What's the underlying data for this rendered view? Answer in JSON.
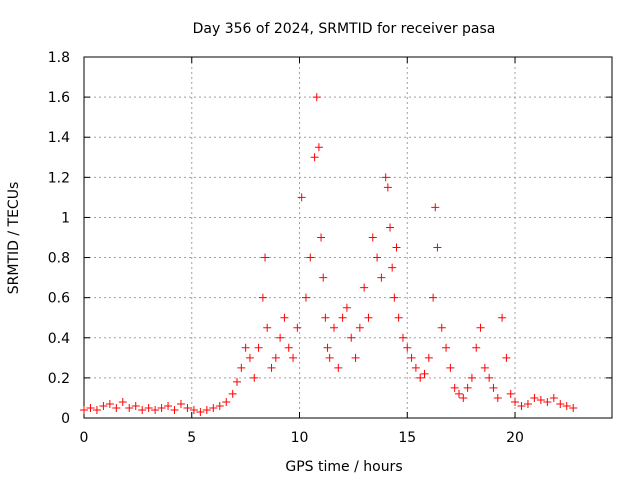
{
  "chart_data": {
    "type": "scatter",
    "title": "Day 356 of 2024, SRMTID for receiver pasa",
    "xlabel": "GPS time / hours",
    "ylabel": "SRMTID / TECUs",
    "xlim": [
      0,
      24.5
    ],
    "ylim": [
      0,
      1.8
    ],
    "xticks": [
      0,
      5,
      10,
      15,
      20
    ],
    "xtick_labels": [
      "0",
      "5",
      "10",
      "15",
      "20"
    ],
    "yticks": [
      0,
      0.2,
      0.4,
      0.6,
      0.8,
      1,
      1.2,
      1.4,
      1.6,
      1.8
    ],
    "ytick_labels": [
      "0",
      "0.2",
      "0.4",
      "0.6",
      "0.8",
      "1",
      "1.2",
      "1.4",
      "1.6",
      "1.8"
    ],
    "grid": true,
    "marker": "+",
    "marker_color": "#ff0000",
    "series": [
      {
        "name": "SRMTID",
        "x": [
          0.0,
          0.3,
          0.6,
          0.9,
          1.2,
          1.5,
          1.8,
          2.1,
          2.4,
          2.7,
          3.0,
          3.3,
          3.6,
          3.9,
          4.2,
          4.5,
          4.8,
          5.1,
          5.4,
          5.7,
          6.0,
          6.3,
          6.6,
          6.9,
          7.1,
          7.3,
          7.5,
          7.7,
          7.9,
          8.1,
          8.3,
          8.4,
          8.5,
          8.7,
          8.9,
          9.1,
          9.3,
          9.5,
          9.7,
          9.9,
          10.1,
          10.3,
          10.5,
          10.7,
          10.8,
          10.9,
          11.0,
          11.1,
          11.2,
          11.3,
          11.4,
          11.6,
          11.8,
          12.0,
          12.2,
          12.4,
          12.6,
          12.8,
          13.0,
          13.2,
          13.4,
          13.6,
          13.8,
          14.0,
          14.1,
          14.2,
          14.3,
          14.4,
          14.5,
          14.6,
          14.8,
          15.0,
          15.2,
          15.4,
          15.6,
          15.8,
          16.0,
          16.2,
          16.3,
          16.4,
          16.6,
          16.8,
          17.0,
          17.2,
          17.4,
          17.6,
          17.8,
          18.0,
          18.2,
          18.4,
          18.6,
          18.8,
          19.0,
          19.2,
          19.4,
          19.6,
          19.8,
          20.0,
          20.3,
          20.6,
          20.9,
          21.2,
          21.5,
          21.8,
          22.1,
          22.4,
          22.7
        ],
        "y": [
          0.04,
          0.05,
          0.04,
          0.06,
          0.07,
          0.05,
          0.08,
          0.05,
          0.06,
          0.04,
          0.05,
          0.04,
          0.05,
          0.06,
          0.04,
          0.07,
          0.05,
          0.04,
          0.03,
          0.04,
          0.05,
          0.06,
          0.08,
          0.12,
          0.18,
          0.25,
          0.35,
          0.3,
          0.2,
          0.35,
          0.6,
          0.8,
          0.45,
          0.25,
          0.3,
          0.4,
          0.5,
          0.35,
          0.3,
          0.45,
          1.1,
          0.6,
          0.8,
          1.3,
          1.6,
          1.35,
          0.9,
          0.7,
          0.5,
          0.35,
          0.3,
          0.45,
          0.25,
          0.5,
          0.55,
          0.4,
          0.3,
          0.45,
          0.65,
          0.5,
          0.9,
          0.8,
          0.7,
          1.2,
          1.15,
          0.95,
          0.75,
          0.6,
          0.85,
          0.5,
          0.4,
          0.35,
          0.3,
          0.25,
          0.2,
          0.22,
          0.3,
          0.6,
          1.05,
          0.85,
          0.45,
          0.35,
          0.25,
          0.15,
          0.12,
          0.1,
          0.15,
          0.2,
          0.35,
          0.45,
          0.25,
          0.2,
          0.15,
          0.1,
          0.5,
          0.3,
          0.12,
          0.08,
          0.06,
          0.07,
          0.1,
          0.09,
          0.08,
          0.1,
          0.07,
          0.06,
          0.05
        ]
      }
    ]
  }
}
